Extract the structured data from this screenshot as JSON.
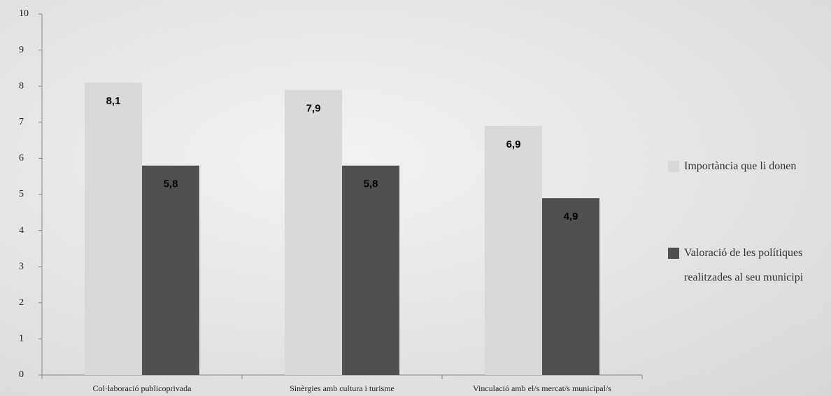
{
  "chart_data": {
    "type": "bar",
    "categories": [
      "Col·laboració publicoprivada",
      "Sinèrgies amb cultura i turisme",
      "Vinculació amb el/s mercat/s municipal/s"
    ],
    "series": [
      {
        "name": "Importància que li donen",
        "color": "#d9d9d9",
        "values": [
          8.1,
          7.9,
          6.9
        ],
        "value_labels": [
          "8,1",
          "7,9",
          "6,9"
        ]
      },
      {
        "name": "Valoració de les polítiques realitzades al seu municipi",
        "color": "#505050",
        "values": [
          5.8,
          5.8,
          4.9
        ],
        "value_labels": [
          "5,8",
          "5,8",
          "4,9"
        ]
      }
    ],
    "ylim": [
      0,
      10
    ],
    "yticks": [
      0,
      1,
      2,
      3,
      4,
      5,
      6,
      7,
      8,
      9,
      10
    ],
    "legend": "right"
  }
}
